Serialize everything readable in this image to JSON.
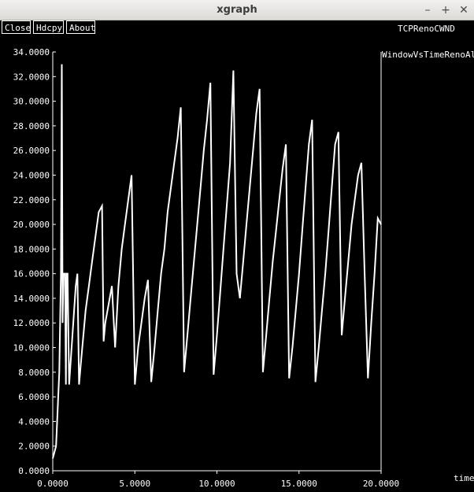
{
  "window": {
    "title": "xgraph",
    "minimize_label": "–",
    "maximize_label": "+",
    "close_label": "✕"
  },
  "toolbar": {
    "close_label": "Close",
    "hdcpy_label": "Hdcpy",
    "about_label": "About"
  },
  "chart_data": {
    "type": "line",
    "title": "TCPRenoCWND",
    "xlabel": "time",
    "ylabel": "",
    "xlim": [
      0,
      20
    ],
    "ylim": [
      0,
      34
    ],
    "grid": false,
    "legend_position": "top-right",
    "x_ticks": [
      "0.0000",
      "5.0000",
      "10.0000",
      "15.0000",
      "20.0000"
    ],
    "y_ticks": [
      "0.0000",
      "2.0000",
      "4.0000",
      "6.0000",
      "8.0000",
      "10.0000",
      "12.0000",
      "14.0000",
      "16.0000",
      "18.0000",
      "20.0000",
      "22.0000",
      "24.0000",
      "26.0000",
      "28.0000",
      "30.0000",
      "32.0000",
      "34.0000"
    ],
    "series": [
      {
        "name": "WindowVsTimeRenoAll",
        "color": "#ffffff",
        "x": [
          0.0,
          0.2,
          0.4,
          0.5,
          0.55,
          0.6,
          0.65,
          0.7,
          0.75,
          0.8,
          0.85,
          0.9,
          1.0,
          1.1,
          1.2,
          1.3,
          1.4,
          1.5,
          1.6,
          1.7,
          1.8,
          1.9,
          2.0,
          2.2,
          2.4,
          2.6,
          2.8,
          3.0,
          3.1,
          3.2,
          3.4,
          3.6,
          3.8,
          4.0,
          4.2,
          4.4,
          4.6,
          4.8,
          5.0,
          5.2,
          5.4,
          5.6,
          5.8,
          6.0,
          6.2,
          6.4,
          6.6,
          6.8,
          7.0,
          7.2,
          7.4,
          7.6,
          7.8,
          8.0,
          8.2,
          8.4,
          8.6,
          8.8,
          9.0,
          9.2,
          9.4,
          9.6,
          9.8,
          10.0,
          10.2,
          10.4,
          10.6,
          10.8,
          11.0,
          11.2,
          11.4,
          11.6,
          11.8,
          12.0,
          12.2,
          12.4,
          12.6,
          12.8,
          13.0,
          13.2,
          13.4,
          13.6,
          13.8,
          14.0,
          14.2,
          14.4,
          14.6,
          14.8,
          15.0,
          15.2,
          15.4,
          15.6,
          15.8,
          16.0,
          16.2,
          16.4,
          16.6,
          16.8,
          17.0,
          17.2,
          17.4,
          17.6,
          17.8,
          18.0,
          18.2,
          18.4,
          18.6,
          18.8,
          19.0,
          19.2,
          19.4,
          19.6,
          19.8,
          20.0
        ],
        "y": [
          1,
          2,
          8,
          16,
          33,
          12,
          16,
          16,
          16,
          7,
          16,
          16,
          7,
          9,
          11,
          13,
          15,
          16,
          7,
          8.5,
          10,
          11.5,
          13,
          15,
          17,
          19,
          21,
          21.5,
          10.5,
          12,
          13.5,
          15,
          10,
          15,
          18,
          20,
          22,
          24,
          7,
          10,
          12,
          14,
          15.5,
          7.2,
          10,
          13,
          16,
          18,
          21,
          23,
          25,
          27,
          29.5,
          8,
          11,
          14,
          17,
          20,
          23,
          26,
          28.5,
          31.5,
          7.8,
          11,
          14.5,
          18,
          21.5,
          25,
          32.5,
          16,
          14,
          17,
          20,
          23,
          26,
          29,
          31,
          8,
          11,
          14,
          17,
          19.5,
          22,
          24.5,
          26.5,
          7.5,
          10,
          13,
          16,
          19.5,
          23,
          26.5,
          28.5,
          7.2,
          10,
          13,
          16,
          19.5,
          23,
          26.5,
          27.5,
          11,
          14,
          17,
          20,
          22,
          24,
          25,
          16,
          7.5,
          12,
          16,
          20.5,
          20
        ]
      }
    ]
  }
}
